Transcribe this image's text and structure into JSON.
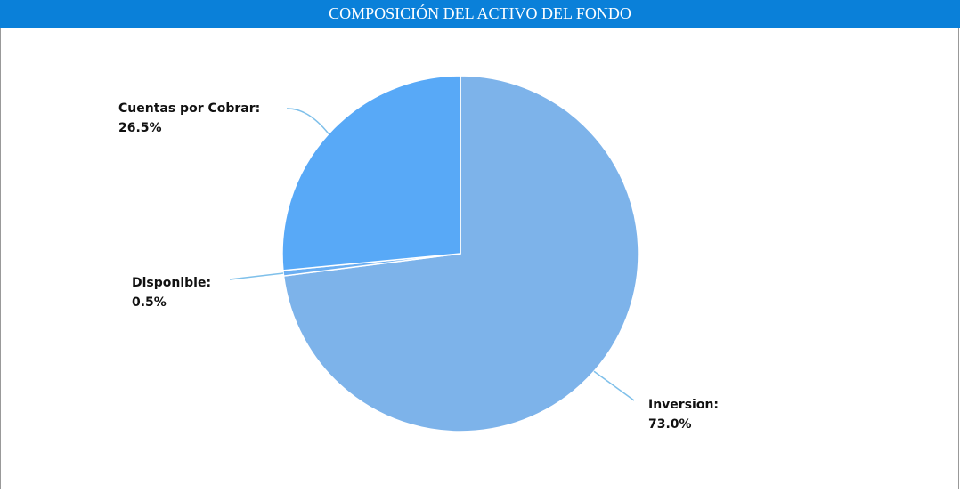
{
  "chart_data": {
    "type": "pie",
    "title": "COMPOSICIÓN DEL ACTIVO DEL FONDO",
    "categories": [
      "Inversion:",
      "Disponible:",
      "Cuentas por Cobrar:"
    ],
    "values": [
      73.0,
      0.5,
      26.5
    ],
    "value_labels": [
      "73.0%",
      "0.5%",
      "26.5%"
    ],
    "colors": [
      "#7db3ea",
      "#6aaef2",
      "#58a9f7"
    ]
  }
}
